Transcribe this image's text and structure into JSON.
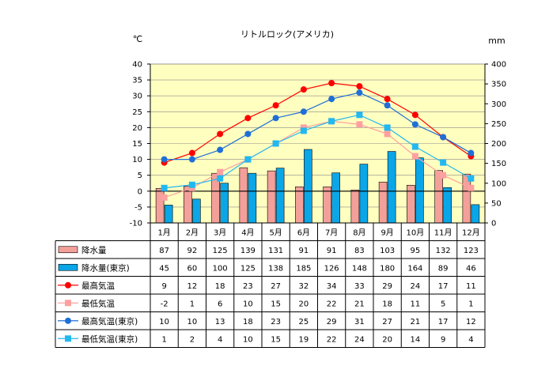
{
  "chart_data": {
    "type": "bar",
    "title": "リトルロック(アメリカ)",
    "ylabel_left": "℃",
    "ylabel_right": "mm",
    "ylim_left": [
      -10,
      40
    ],
    "ylim_right": [
      0,
      400
    ],
    "yticks_left": [
      "40",
      "35",
      "30",
      "25",
      "20",
      "15",
      "10",
      "5",
      "0",
      "-5",
      "-10"
    ],
    "yticks_right": [
      "400",
      "350",
      "300",
      "250",
      "200",
      "150",
      "100",
      "50",
      "0"
    ],
    "grid": true,
    "legend_placement": "table-below",
    "categories": [
      "1月",
      "2月",
      "3月",
      "4月",
      "5月",
      "6月",
      "7月",
      "8月",
      "9月",
      "10月",
      "11月",
      "12月"
    ],
    "series": [
      {
        "name": "降水量",
        "kind": "bar",
        "axis": "right",
        "color": "#f4a09a",
        "values": [
          87,
          92,
          125,
          139,
          131,
          91,
          91,
          83,
          103,
          95,
          132,
          123
        ]
      },
      {
        "name": "降水量(東京)",
        "kind": "bar",
        "axis": "right",
        "color": "#0aa6e8",
        "values": [
          45,
          60,
          100,
          125,
          138,
          185,
          126,
          148,
          180,
          164,
          89,
          46
        ]
      },
      {
        "name": "最高気温",
        "kind": "line",
        "marker": "circle",
        "axis": "left",
        "color": "#ff0000",
        "values": [
          9,
          12,
          18,
          23,
          27,
          32,
          34,
          33,
          29,
          24,
          17,
          11
        ]
      },
      {
        "name": "最低気温",
        "kind": "line",
        "marker": "square",
        "axis": "left",
        "color": "#ffa0a0",
        "values": [
          -2,
          1,
          6,
          10,
          15,
          20,
          22,
          21,
          18,
          11,
          5,
          1
        ]
      },
      {
        "name": "最高気温(東京)",
        "kind": "line",
        "marker": "circle",
        "axis": "left",
        "color": "#1f6fd6",
        "values": [
          10,
          10,
          13,
          18,
          23,
          25,
          29,
          31,
          27,
          21,
          17,
          12
        ]
      },
      {
        "name": "最低気温(東京)",
        "kind": "line",
        "marker": "square",
        "axis": "left",
        "color": "#22b8f0",
        "values": [
          1,
          2,
          4,
          10,
          15,
          19,
          22,
          24,
          20,
          14,
          9,
          4
        ]
      }
    ],
    "colors": {
      "plot_bg": "#ffffc0",
      "grid": "#8a8a8a",
      "bar_border": "#000000",
      "zero_line": "#000000"
    }
  }
}
